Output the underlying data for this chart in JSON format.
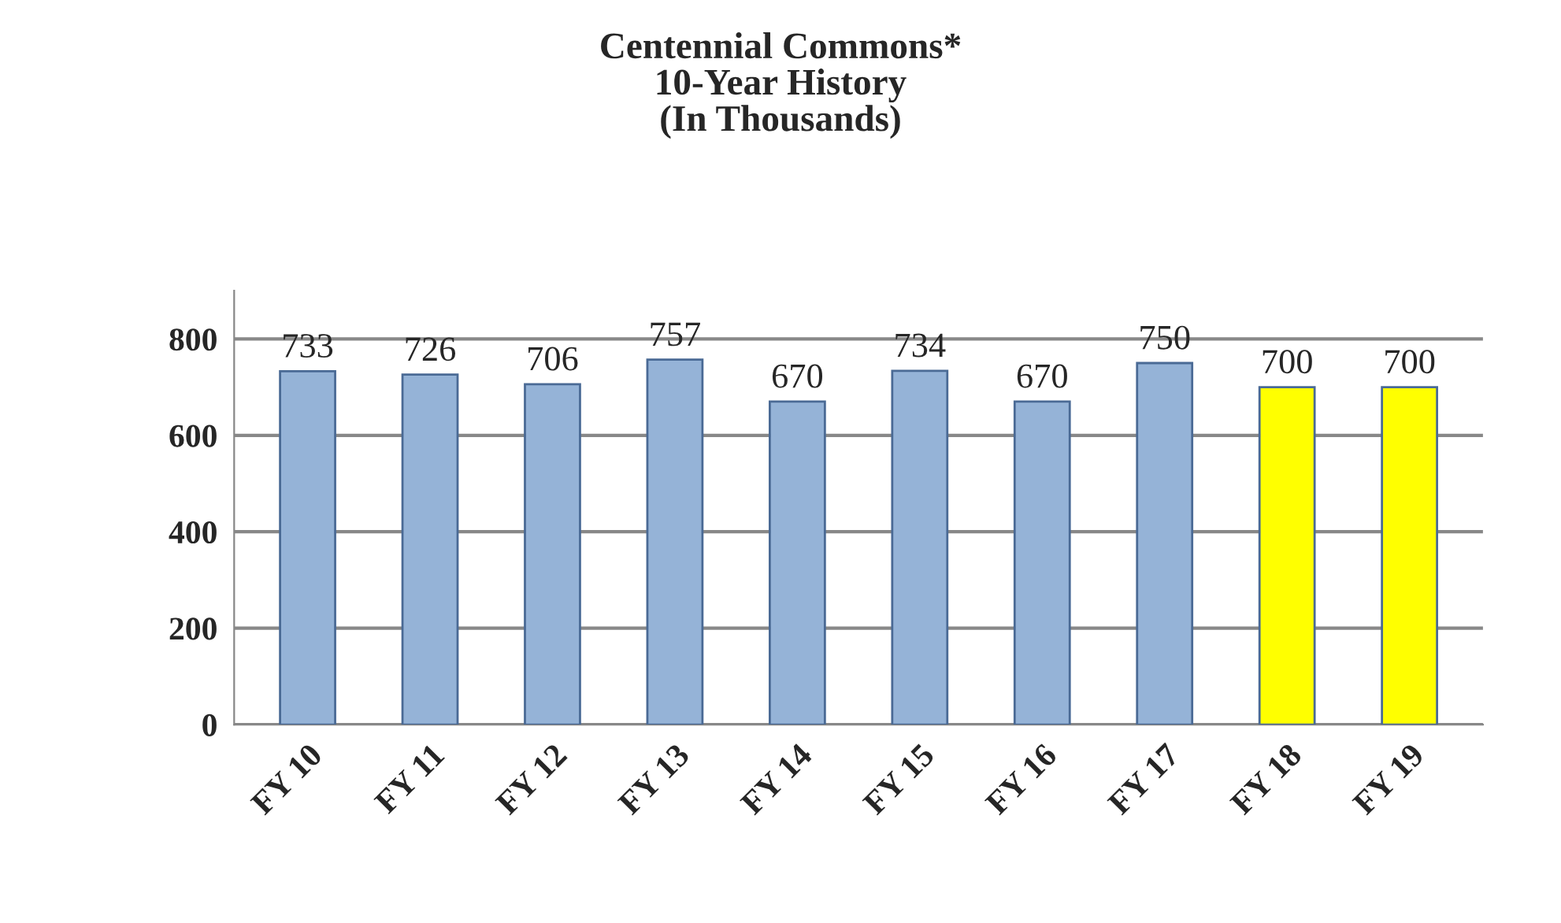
{
  "chart_data": {
    "type": "bar",
    "title": "Centennial Commons*\n10-Year History\n(In Thousands)",
    "categories": [
      "FY 10",
      "FY 11",
      "FY 12",
      "FY 13",
      "FY 14",
      "FY 15",
      "FY 16",
      "FY 17",
      "FY 18",
      "FY 19"
    ],
    "values": [
      733,
      726,
      706,
      757,
      670,
      734,
      670,
      750,
      700,
      700
    ],
    "colors": [
      "#95b3d7",
      "#95b3d7",
      "#95b3d7",
      "#95b3d7",
      "#95b3d7",
      "#95b3d7",
      "#95b3d7",
      "#95b3d7",
      "#ffff00",
      "#ffff00"
    ],
    "ylim": [
      0,
      900
    ],
    "yticks": [
      0,
      200,
      400,
      600,
      800
    ],
    "grid": "y",
    "data_labels": true,
    "legend": false
  }
}
